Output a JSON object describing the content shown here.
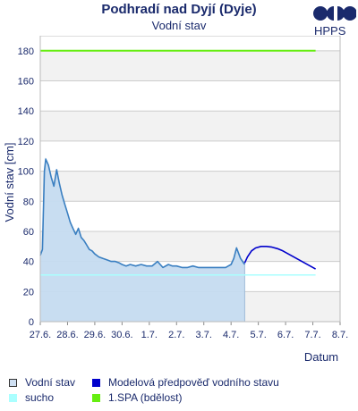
{
  "header": {
    "title": "Podhradí nad Dyjí (Dyje)",
    "subtitle": "Vodní stav",
    "logo_text": "HPPS"
  },
  "legend": [
    {
      "label": "Vodní stav",
      "color": "#cfe0f3",
      "border": "#333333"
    },
    {
      "label": "Modelová předpověď vodního stavu",
      "color": "#0000cc",
      "border": "#0000cc"
    },
    {
      "label": "sucho",
      "color": "#aaffff",
      "border": "#aaffff"
    },
    {
      "label": "1.SPA (bdělost)",
      "color": "#66ee11",
      "border": "#66ee11"
    }
  ],
  "colors": {
    "observed_line": "#3a7fc1",
    "observed_fill": "#c6dcf1",
    "forecast_line": "#0000cc",
    "drought_line": "#aaffff",
    "spa1_line": "#66ee11",
    "band": "#f2f2f2",
    "grid": "#cccccc"
  },
  "chart_data": {
    "type": "line",
    "title": "Vodní stav",
    "xlabel": "Datum",
    "ylabel": "Vodní stav [cm]",
    "ylim": [
      0,
      190
    ],
    "yticks": [
      "0",
      "20",
      "40",
      "60",
      "80",
      "100",
      "120",
      "140",
      "160",
      "180"
    ],
    "xlim": [
      0,
      11
    ],
    "xticks": [
      "27.6.",
      "28.6.",
      "29.6.",
      "30.6.",
      "1.7.",
      "2.7.",
      "3.7.",
      "4.7.",
      "5.7.",
      "6.7.",
      "7.7.",
      "8.7."
    ],
    "grid": true,
    "legend_position": "bottom",
    "series": [
      {
        "name": "Vodní stav",
        "x": [
          0.0,
          0.08,
          0.15,
          0.2,
          0.3,
          0.4,
          0.5,
          0.6,
          0.7,
          0.8,
          0.9,
          1.0,
          1.1,
          1.2,
          1.3,
          1.4,
          1.5,
          1.6,
          1.7,
          1.8,
          1.9,
          2.0,
          2.15,
          2.3,
          2.45,
          2.6,
          2.75,
          2.9,
          3.0,
          3.15,
          3.3,
          3.5,
          3.7,
          3.9,
          4.1,
          4.3,
          4.5,
          4.7,
          4.85,
          5.0,
          5.2,
          5.4,
          5.6,
          5.8,
          6.0,
          6.2,
          6.4,
          6.6,
          6.8,
          6.9,
          7.0,
          7.1,
          7.2,
          7.35,
          7.5
        ],
        "y": [
          44,
          48,
          100,
          108,
          104,
          96,
          90,
          101,
          92,
          84,
          78,
          72,
          66,
          62,
          58,
          62,
          56,
          54,
          51,
          48,
          47,
          45,
          43,
          42,
          41,
          40,
          40,
          39,
          38,
          37,
          38,
          37,
          38,
          37,
          37,
          40,
          36,
          38,
          37,
          37,
          36,
          36,
          37,
          36,
          36,
          36,
          36,
          36,
          36,
          37,
          38,
          42,
          49,
          42,
          38
        ]
      },
      {
        "name": "Modelová předpověď vodního stavu",
        "x": [
          7.5,
          7.6,
          7.75,
          7.9,
          8.1,
          8.3,
          8.5,
          8.7,
          8.9,
          9.1,
          9.3,
          9.5,
          9.7,
          9.9,
          10.1
        ],
        "y": [
          39,
          43,
          47,
          49,
          50,
          50,
          49.5,
          48.5,
          47,
          45,
          43,
          41,
          39,
          37,
          35
        ]
      },
      {
        "name": "sucho",
        "x": [
          0,
          10.1
        ],
        "y": [
          31,
          31
        ]
      },
      {
        "name": "1.SPA (bdělost)",
        "x": [
          0,
          10.1
        ],
        "y": [
          180,
          180
        ]
      }
    ]
  }
}
